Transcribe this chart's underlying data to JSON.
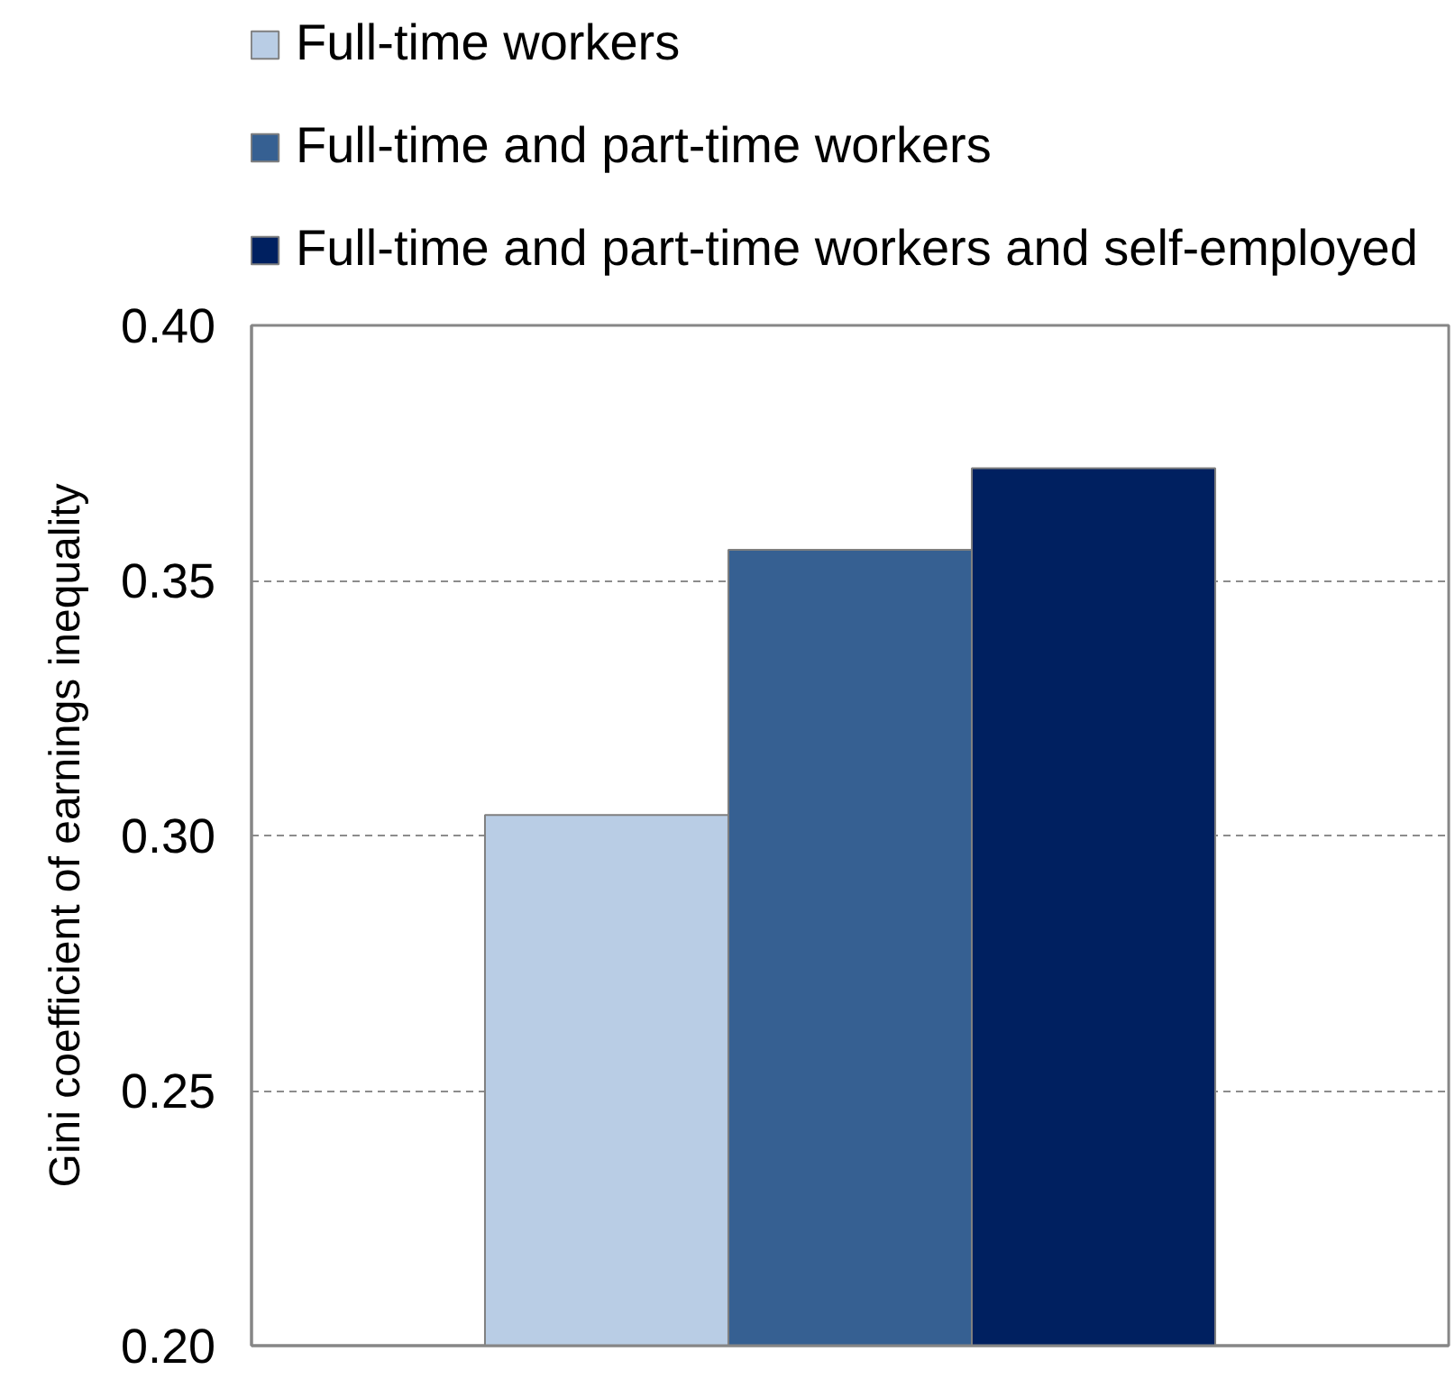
{
  "chart_data": {
    "type": "bar",
    "ylabel": "Gini coefficient of earnings inequality",
    "categories": [
      null
    ],
    "series": [
      {
        "name": "Full-time workers",
        "color": "#b9cde5",
        "values": [
          0.304
        ]
      },
      {
        "name": "Full-time and part-time workers",
        "color": "#366092",
        "values": [
          0.356
        ]
      },
      {
        "name": "Full-time and part-time workers and self-employed",
        "color": "#002060",
        "values": [
          0.372
        ]
      }
    ],
    "ylim": [
      0.2,
      0.4
    ],
    "yticks": [
      {
        "value": 0.2,
        "label": "0.20"
      },
      {
        "value": 0.25,
        "label": "0.25"
      },
      {
        "value": 0.3,
        "label": "0.30"
      },
      {
        "value": 0.35,
        "label": "0.35"
      },
      {
        "value": 0.4,
        "label": "0.40"
      }
    ],
    "grid": "y",
    "legend": "top",
    "tick_labels": "y"
  }
}
